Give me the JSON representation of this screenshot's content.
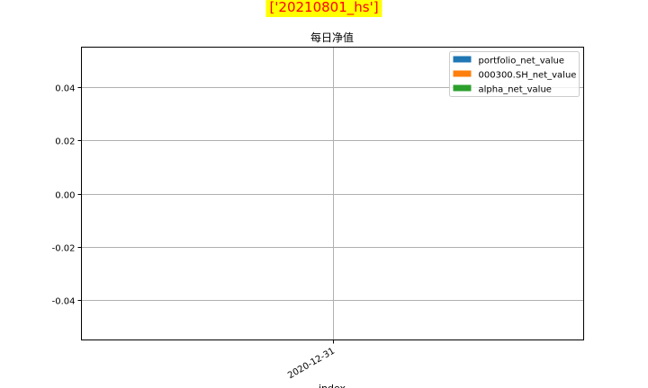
{
  "suptitle": "['20210801_hs']",
  "colors": {
    "suptitle_bg": "#ffff00",
    "suptitle_text": "#ff0000",
    "grid": "#b0b0b0",
    "axes": "#000000"
  },
  "chart_data": {
    "type": "bar",
    "title": "每日净值",
    "xlabel": "index",
    "ylabel": "",
    "categories": [
      "2020-12-31"
    ],
    "series": [
      {
        "name": "portfolio_net_value",
        "color": "#1f77b4",
        "values": [
          0
        ]
      },
      {
        "name": "000300.SH_net_value",
        "color": "#ff7f0e",
        "values": [
          0
        ]
      },
      {
        "name": "alpha_net_value",
        "color": "#2ca02c",
        "values": [
          0
        ]
      }
    ],
    "ylim": [
      -0.055,
      0.055
    ],
    "yticks": [
      0.04,
      0.02,
      0.0,
      -0.02,
      -0.04
    ],
    "ytick_labels": [
      "0.04",
      "0.02",
      "0.00",
      "-0.02",
      "-0.04"
    ],
    "grid": true,
    "legend_position": "top-right"
  }
}
